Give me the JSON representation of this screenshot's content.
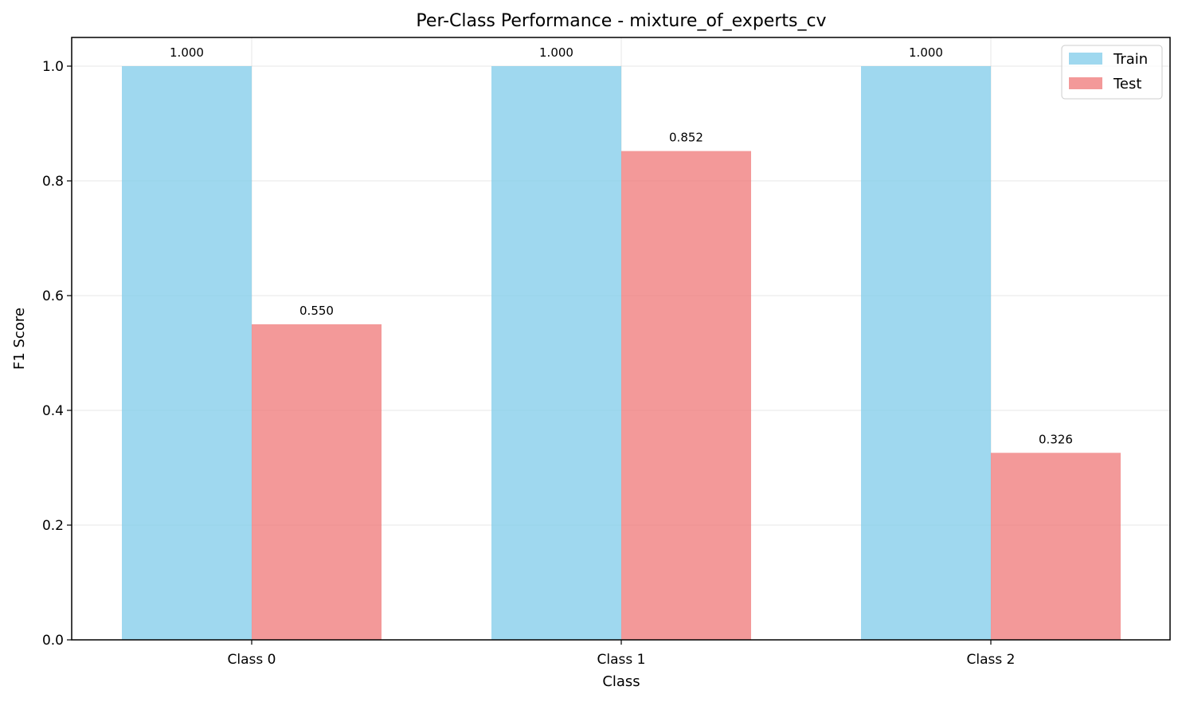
{
  "chart_data": {
    "type": "bar",
    "title": "Per-Class Performance - mixture_of_experts_cv",
    "xlabel": "Class",
    "ylabel": "F1 Score",
    "categories": [
      "Class 0",
      "Class 1",
      "Class 2"
    ],
    "series": [
      {
        "name": "Train",
        "color": "#87CEEB",
        "values": [
          1.0,
          1.0,
          1.0
        ],
        "labels": [
          "1.000",
          "1.000",
          "1.000"
        ]
      },
      {
        "name": "Test",
        "color": "#F08080",
        "values": [
          0.55,
          0.852,
          0.326
        ],
        "labels": [
          "0.550",
          "0.852",
          "0.326"
        ]
      }
    ],
    "ylim": [
      0,
      1.05
    ],
    "yticks": [
      "0.0",
      "0.2",
      "0.4",
      "0.6",
      "0.8",
      "1.0"
    ],
    "ytick_values": [
      0,
      0.2,
      0.4,
      0.6,
      0.8,
      1.0
    ],
    "grid": true,
    "legend_position": "top-right"
  }
}
